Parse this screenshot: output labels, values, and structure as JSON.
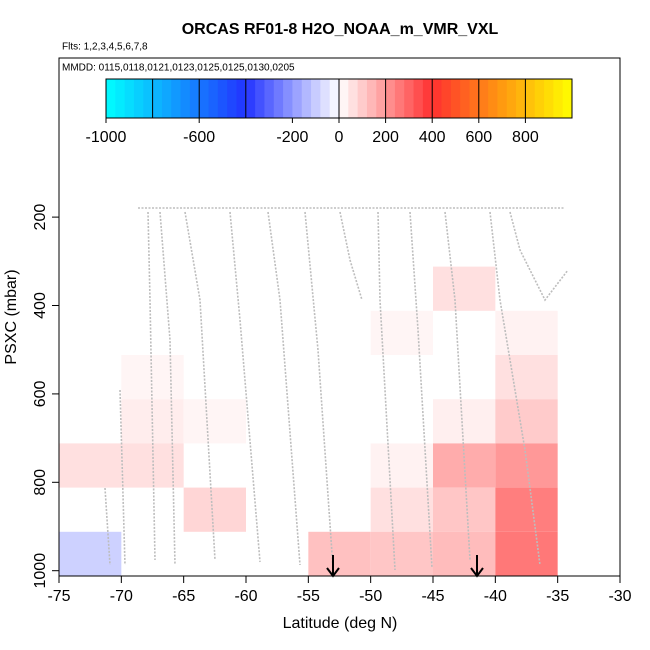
{
  "chart_data": {
    "type": "heatmap",
    "title": "ORCAS RF01-8 H2O_NOAA_m_VMR_VXL",
    "subtitle": "Flts: 1,2,3,4,5,6,7,8",
    "annotation": "MMDD: 0115,0118,0121,0123,0125,0125,0130,0205",
    "x_label": "Latitude (deg N)",
    "y_label": "PSXC (mbar)",
    "xlim": [
      -75,
      -30
    ],
    "xticks": [
      -75,
      -70,
      -65,
      -60,
      -55,
      -50,
      -45,
      -40,
      -35,
      -30
    ],
    "ylim": [
      1012,
      -160
    ],
    "yticks": [
      200,
      400,
      600,
      800,
      1000
    ],
    "cells": [
      {
        "x": [
          -75,
          -70
        ],
        "y": [
          712,
          812
        ],
        "value": 60
      },
      {
        "x": [
          -75,
          -70
        ],
        "y": [
          912,
          1012
        ],
        "value": -90
      },
      {
        "x": [
          -70,
          -65
        ],
        "y": [
          512,
          612
        ],
        "value": 20
      },
      {
        "x": [
          -70,
          -65
        ],
        "y": [
          612,
          712
        ],
        "value": 35
      },
      {
        "x": [
          -70,
          -65
        ],
        "y": [
          712,
          812
        ],
        "value": 60
      },
      {
        "x": [
          -65,
          -60
        ],
        "y": [
          612,
          712
        ],
        "value": 20
      },
      {
        "x": [
          -65,
          -60
        ],
        "y": [
          812,
          912
        ],
        "value": 80
      },
      {
        "x": [
          -55,
          -50
        ],
        "y": [
          912,
          1012
        ],
        "value": 120
      },
      {
        "x": [
          -50,
          -45
        ],
        "y": [
          412,
          512
        ],
        "value": 20
      },
      {
        "x": [
          -50,
          -45
        ],
        "y": [
          712,
          812
        ],
        "value": 25
      },
      {
        "x": [
          -50,
          -45
        ],
        "y": [
          812,
          912
        ],
        "value": 60
      },
      {
        "x": [
          -50,
          -45
        ],
        "y": [
          912,
          1012
        ],
        "value": 110
      },
      {
        "x": [
          -45,
          -40
        ],
        "y": [
          312,
          412
        ],
        "value": 60
      },
      {
        "x": [
          -45,
          -40
        ],
        "y": [
          612,
          712
        ],
        "value": 30
      },
      {
        "x": [
          -45,
          -40
        ],
        "y": [
          712,
          812
        ],
        "value": 160
      },
      {
        "x": [
          -45,
          -40
        ],
        "y": [
          812,
          912
        ],
        "value": 110
      },
      {
        "x": [
          -45,
          -40
        ],
        "y": [
          912,
          1012
        ],
        "value": 130
      },
      {
        "x": [
          -40,
          -35
        ],
        "y": [
          412,
          512
        ],
        "value": 25
      },
      {
        "x": [
          -40,
          -35
        ],
        "y": [
          512,
          612
        ],
        "value": 60
      },
      {
        "x": [
          -40,
          -35
        ],
        "y": [
          612,
          712
        ],
        "value": 100
      },
      {
        "x": [
          -40,
          -35
        ],
        "y": [
          712,
          812
        ],
        "value": 200
      },
      {
        "x": [
          -40,
          -35
        ],
        "y": [
          812,
          912
        ],
        "value": 250
      },
      {
        "x": [
          -40,
          -35
        ],
        "y": [
          912,
          1012
        ],
        "value": 260
      }
    ],
    "colorbar": {
      "lim": [
        -1000,
        1000
      ],
      "ticks": [
        -1000,
        -600,
        -200,
        0,
        200,
        400,
        600,
        800
      ],
      "breaks": [
        -800,
        -600,
        -400,
        0,
        200,
        400,
        600,
        800
      ],
      "stops": [
        [
          -1000,
          "#00ffff"
        ],
        [
          -400,
          "#2233ff"
        ],
        [
          0,
          "#ffffff"
        ],
        [
          400,
          "#ff3030"
        ],
        [
          700,
          "#ff9a10"
        ],
        [
          1000,
          "#ffff00"
        ]
      ]
    }
  }
}
